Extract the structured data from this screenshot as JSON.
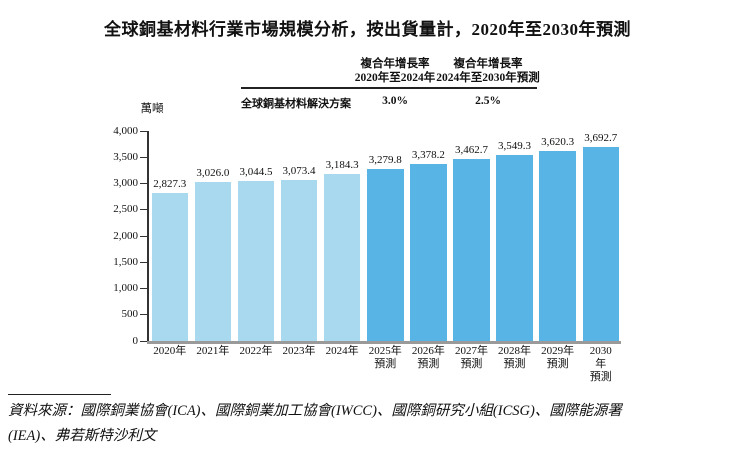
{
  "title": "全球銅基材料行業市場規模分析，按出貨量計，2020年至2030年預測",
  "cagr_table": {
    "row_label": "全球銅基材料解決方案",
    "columns": [
      {
        "header_line1": "複合年增長率",
        "header_line2": "2020年至2024年",
        "value": "3.0%"
      },
      {
        "header_line1": "複合年增長率",
        "header_line2": "2024年至2030年預測",
        "value": "2.5%"
      }
    ]
  },
  "chart_data": {
    "type": "bar",
    "title": "全球銅基材料行業市場規模分析，按出貨量計，2020年至2030年預測",
    "ylabel": "萬噸",
    "xlabel": "",
    "ylim": [
      0,
      4000
    ],
    "grid": false,
    "legend": false,
    "ytick_values": [
      0,
      500,
      1000,
      1500,
      2000,
      2500,
      3000,
      3500,
      4000
    ],
    "ytick_labels": [
      "0",
      "500",
      "1,000",
      "1,500",
      "2,000",
      "2,500",
      "3,000",
      "3,500",
      "4,000"
    ],
    "categories": [
      {
        "label": "2020年",
        "sublabel": ""
      },
      {
        "label": "2021年",
        "sublabel": ""
      },
      {
        "label": "2022年",
        "sublabel": ""
      },
      {
        "label": "2023年",
        "sublabel": ""
      },
      {
        "label": "2024年",
        "sublabel": ""
      },
      {
        "label": "2025年",
        "sublabel": "預測"
      },
      {
        "label": "2026年",
        "sublabel": "預測"
      },
      {
        "label": "2027年",
        "sublabel": "預測"
      },
      {
        "label": "2028年",
        "sublabel": "預測"
      },
      {
        "label": "2029年",
        "sublabel": "預測"
      },
      {
        "label": "2030年",
        "sublabel": "預測"
      }
    ],
    "values": [
      2827.3,
      3026.0,
      3044.5,
      3073.4,
      3184.3,
      3279.8,
      3378.2,
      3462.7,
      3549.3,
      3620.3,
      3692.7
    ],
    "value_labels": [
      "2,827.3",
      "3,026.0",
      "3,044.5",
      "3,073.4",
      "3,184.3",
      "3,279.8",
      "3,378.2",
      "3,462.7",
      "3,549.3",
      "3,620.3",
      "3,692.7"
    ],
    "forecast_start_index": 5,
    "colors": {
      "historical": "#A9D9EF",
      "forecast": "#57B4E4"
    }
  },
  "source": {
    "line1": "資料來源：國際銅業協會(ICA)、國際銅業加工協會(IWCC)、國際銅研究小組(ICSG)、國際能源署",
    "line2": "(IEA)、弗若斯特沙利文"
  }
}
